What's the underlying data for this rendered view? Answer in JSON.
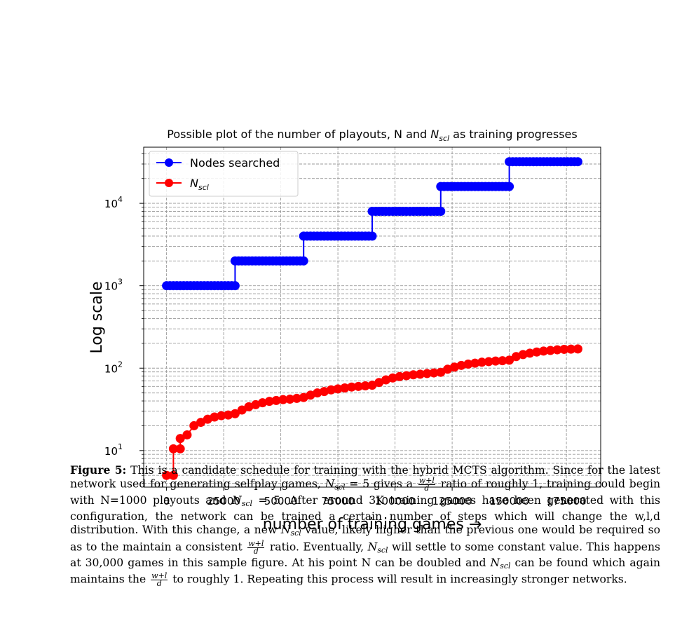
{
  "chart_data": {
    "type": "line",
    "title": "Possible plot of the number of playouts, N and N_scl as training progresses",
    "xlabel": "number of training games →",
    "ylabel": "Log scale",
    "x_ticks": [
      0,
      25000,
      50000,
      75000,
      100000,
      125000,
      150000,
      175000
    ],
    "x_tick_labels": [
      "0",
      "25000",
      "50000",
      "75000",
      "100000",
      "125000",
      "150000",
      "175000"
    ],
    "y_ticks": [
      10,
      100,
      1000,
      10000
    ],
    "xlim": [
      -10000,
      190000
    ],
    "ylim": [
      3.6,
      48000
    ],
    "yscale": "log",
    "grid": true,
    "legend_position": "upper-left",
    "series": [
      {
        "name": "Nodes searched",
        "color": "#0000ff",
        "steps": [
          {
            "x_start": 0,
            "x_end": 30000,
            "y": 1000
          },
          {
            "x_start": 30000,
            "x_end": 60000,
            "y": 2000
          },
          {
            "x_start": 60000,
            "x_end": 90000,
            "y": 4000
          },
          {
            "x_start": 90000,
            "x_end": 120000,
            "y": 8000
          },
          {
            "x_start": 120000,
            "x_end": 150000,
            "y": 16000
          },
          {
            "x_start": 150000,
            "x_end": 180000,
            "y": 32000
          }
        ]
      },
      {
        "name": "N_scl",
        "color": "#ff0000",
        "points": [
          [
            0,
            5
          ],
          [
            3000,
            5
          ],
          [
            3000,
            10.5
          ],
          [
            6000,
            10.5
          ],
          [
            6000,
            14
          ],
          [
            9000,
            15.5
          ],
          [
            12000,
            20
          ],
          [
            15000,
            22
          ],
          [
            18000,
            24
          ],
          [
            21000,
            25.5
          ],
          [
            24000,
            26.5
          ],
          [
            27000,
            27
          ],
          [
            30000,
            28
          ],
          [
            33000,
            31
          ],
          [
            36000,
            34
          ],
          [
            39000,
            36
          ],
          [
            42000,
            38
          ],
          [
            45000,
            39.5
          ],
          [
            48000,
            40.5
          ],
          [
            51000,
            41.5
          ],
          [
            54000,
            42
          ],
          [
            57000,
            43
          ],
          [
            60000,
            44
          ],
          [
            63000,
            47
          ],
          [
            66000,
            50
          ],
          [
            69000,
            52
          ],
          [
            72000,
            54.5
          ],
          [
            75000,
            56
          ],
          [
            78000,
            57.5
          ],
          [
            81000,
            59
          ],
          [
            84000,
            60
          ],
          [
            87000,
            61
          ],
          [
            90000,
            62
          ],
          [
            93000,
            67
          ],
          [
            96000,
            72
          ],
          [
            99000,
            76
          ],
          [
            102000,
            79
          ],
          [
            105000,
            81
          ],
          [
            108000,
            83
          ],
          [
            111000,
            84.5
          ],
          [
            114000,
            86
          ],
          [
            117000,
            87.5
          ],
          [
            120000,
            89
          ],
          [
            123000,
            97
          ],
          [
            126000,
            103
          ],
          [
            129000,
            108
          ],
          [
            132000,
            112
          ],
          [
            135000,
            115
          ],
          [
            138000,
            118
          ],
          [
            141000,
            120
          ],
          [
            144000,
            122
          ],
          [
            147000,
            123
          ],
          [
            150000,
            125
          ],
          [
            153000,
            138
          ],
          [
            156000,
            146
          ],
          [
            159000,
            152
          ],
          [
            162000,
            157
          ],
          [
            165000,
            161
          ],
          [
            168000,
            164
          ],
          [
            171000,
            167
          ],
          [
            174000,
            169
          ],
          [
            177000,
            170
          ],
          [
            180000,
            171
          ]
        ]
      }
    ]
  },
  "caption": {
    "label": "Figure 5:",
    "p1": " This is a candidate schedule for training with the hybrid MCTS algorithm. Since for the latest network used for generating selfplay games, ",
    "p2": " = 5 gives a ",
    "p3": " ratio of roughly 1, training could begin with N=1000 playouts and ",
    "p4": " = 5. After around 3K training games have been generated with this configuration, the network can be trained a certain number of steps which will change the w,l,d distribution. With this change, a new ",
    "p5": " value, likely higher than the previous one would be required so as to the maintain a consistent ",
    "p6": " ratio. Eventually, ",
    "p7": " will settle to some constant value. This happens at 30,000 games in this sample figure. At his point N can be doubled and ",
    "p8": " can be found which again maintains the ",
    "p9": " to roughly 1. Repeating this process will result in increasingly stronger networks.",
    "sym_N": "N",
    "sym_scl": "scl",
    "frac_num": "w+l",
    "frac_den": "d"
  }
}
